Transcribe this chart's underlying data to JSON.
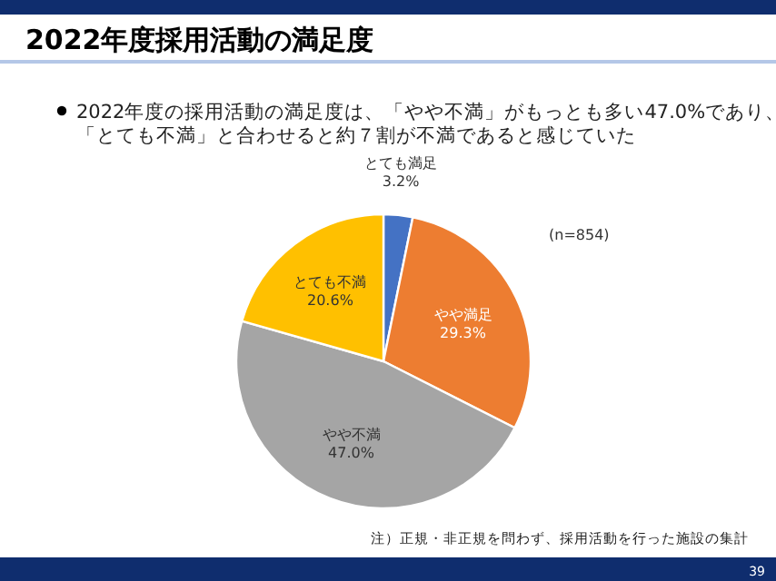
{
  "chart_data": {
    "type": "pie",
    "title": "2022年度採用活動の満足度",
    "subtitle": "2022年度の採用活動の満足度は、「やや不満」がもっとも多い47.0%であり、「とても不満」と合わせると約７割が不満であると感じていた",
    "categories": [
      "とても満足",
      "やや満足",
      "やや不満",
      "とても不満"
    ],
    "values": [
      3.2,
      29.3,
      47.0,
      20.6
    ],
    "colors": [
      "#4472c4",
      "#ed7d31",
      "#a5a5a5",
      "#ffc000"
    ],
    "value_labels": [
      "3.2%",
      "29.3%",
      "47.0%",
      "20.6%"
    ],
    "legend": false,
    "annotations": [
      "(n=854)",
      "注）正規・非正規を問わず、採用活動を行った施設の集計",
      "39"
    ]
  }
}
